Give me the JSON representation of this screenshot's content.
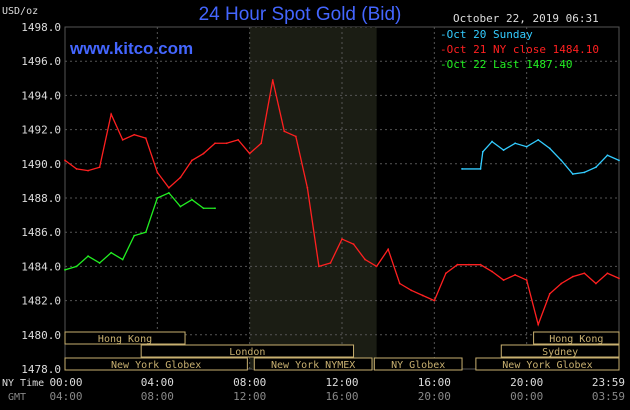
{
  "header": {
    "title": "24 Hour Spot Gold (Bid)",
    "brand": "www.kitco.com",
    "unit": "USD/oz",
    "date": "October 22, 2019 06:31"
  },
  "legend": [
    {
      "label": "Oct 20 Sunday",
      "color": "#33ccff"
    },
    {
      "label": "Oct 21 NY close 1484.10",
      "color": "#ff2020"
    },
    {
      "label": "Oct 22 Last 1487.40",
      "color": "#22ee22"
    }
  ],
  "axis_labels": {
    "ny_time": "NY Time",
    "gmt": "GMT"
  },
  "chart_data": {
    "type": "line",
    "ylim": [
      1478,
      1498
    ],
    "y_ticks": [
      "1478.0",
      "1480.0",
      "1482.0",
      "1484.0",
      "1486.0",
      "1488.0",
      "1490.0",
      "1492.0",
      "1494.0",
      "1496.0",
      "1498.0"
    ],
    "x_ticks_ny": [
      "00:00",
      "04:00",
      "08:00",
      "12:00",
      "16:00",
      "20:00",
      "23:59"
    ],
    "x_ticks_gmt": [
      "04:00",
      "08:00",
      "12:00",
      "16:00",
      "20:00",
      "00:00",
      "03:59"
    ],
    "x_range_hours": [
      0,
      24
    ],
    "highlight_hours": [
      8,
      13.5
    ],
    "series": [
      {
        "name": "Oct 21 NY close 1484.10",
        "color": "#ff2020",
        "x": [
          0,
          0.5,
          1,
          1.5,
          2,
          2.5,
          3,
          3.5,
          4,
          4.5,
          5,
          5.5,
          6,
          6.5,
          7,
          7.5,
          8,
          8.5,
          9,
          9.5,
          10,
          10.5,
          11,
          11.5,
          12,
          12.5,
          13,
          13.5,
          14,
          14.5,
          15,
          15.5,
          16,
          16.5,
          17,
          17.5,
          18,
          18.5,
          19,
          19.5,
          20,
          20.5,
          21,
          21.5,
          22,
          22.5,
          23,
          23.5,
          24
        ],
        "values": [
          1490.2,
          1489.7,
          1489.6,
          1489.8,
          1492.9,
          1491.4,
          1491.7,
          1491.5,
          1489.5,
          1488.6,
          1489.2,
          1490.2,
          1490.6,
          1491.2,
          1491.2,
          1491.4,
          1490.6,
          1491.2,
          1494.9,
          1491.9,
          1491.6,
          1488.6,
          1484.0,
          1484.2,
          1485.6,
          1485.3,
          1484.4,
          1484.0,
          1485.0,
          1483.0,
          1482.6,
          1482.3,
          1482.0,
          1483.6,
          1484.1,
          1484.1,
          1484.1,
          1483.7,
          1483.2,
          1483.5,
          1483.2,
          1480.6,
          1482.4,
          1483.0,
          1483.4,
          1483.6,
          1483.0,
          1483.6,
          1483.3
        ]
      },
      {
        "name": "Oct 22 Last 1487.40",
        "color": "#22ee22",
        "x": [
          0,
          0.5,
          1,
          1.5,
          2,
          2.5,
          3,
          3.5,
          4,
          4.5,
          5,
          5.5,
          6,
          6.5
        ],
        "values": [
          1483.8,
          1484.0,
          1484.6,
          1484.2,
          1484.8,
          1484.4,
          1485.8,
          1486.0,
          1488.0,
          1488.3,
          1487.5,
          1487.9,
          1487.4,
          1487.4
        ]
      },
      {
        "name": "Oct 20 Sunday",
        "color": "#33ccff",
        "x": [
          17.2,
          18.0,
          18.1,
          18.5,
          19,
          19.5,
          20,
          20.5,
          21,
          21.5,
          22,
          22.5,
          23,
          23.5,
          24
        ],
        "values": [
          1489.7,
          1489.7,
          1490.7,
          1491.3,
          1490.8,
          1491.2,
          1491.0,
          1491.4,
          1490.9,
          1490.2,
          1489.4,
          1489.5,
          1489.8,
          1490.5,
          1490.2
        ]
      }
    ]
  },
  "sessions": [
    {
      "label": "Hong Kong",
      "start": 0,
      "end": 5.2,
      "row": 0
    },
    {
      "label": "London",
      "start": 3.3,
      "end": 12.5,
      "row": 1
    },
    {
      "label": "New York Globex",
      "start": 0,
      "end": 7.9,
      "row": 2
    },
    {
      "label": "New York NYMEX",
      "start": 8.2,
      "end": 13.3,
      "row": 2
    },
    {
      "label": "NY Globex",
      "start": 13.4,
      "end": 17.2,
      "row": 2
    },
    {
      "label": "Hong Kong",
      "start": 20.3,
      "end": 24,
      "row": 0
    },
    {
      "label": "Sydney",
      "start": 18.9,
      "end": 24,
      "row": 1
    },
    {
      "label": "New York Globex",
      "start": 17.8,
      "end": 24,
      "row": 2
    }
  ]
}
